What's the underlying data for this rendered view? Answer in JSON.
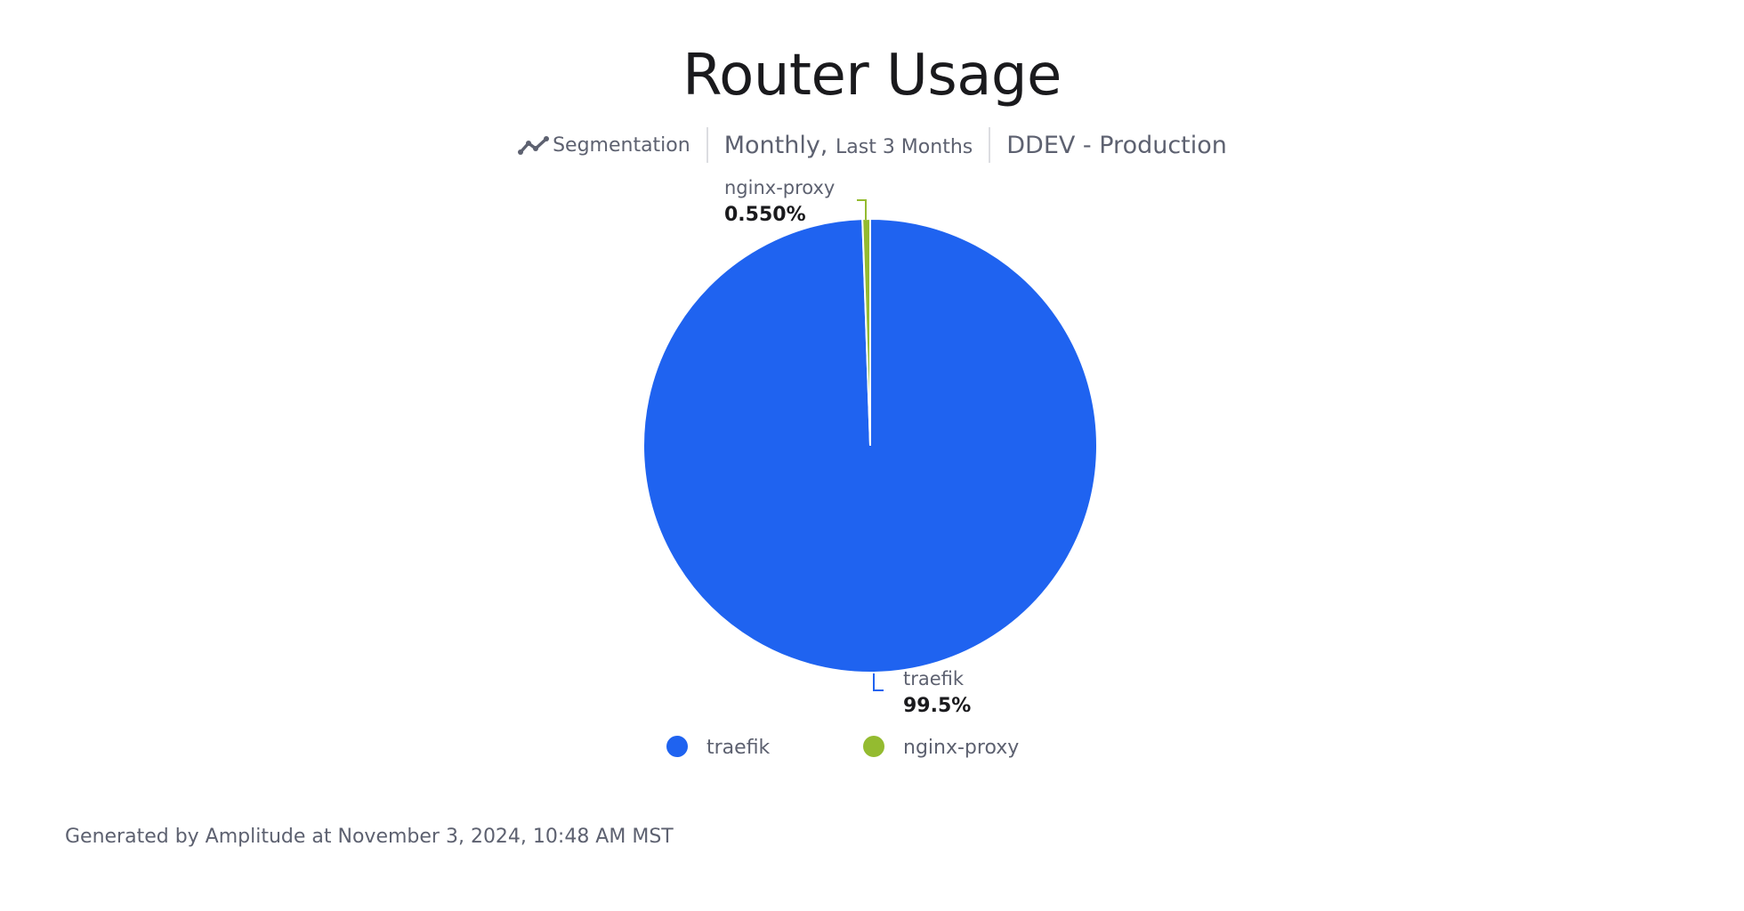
{
  "header": {
    "title": "Router Usage",
    "chart_kind_label": "Segmentation",
    "chart_kind_icon": "line-chart-icon",
    "interval": "Monthly,",
    "range": "Last 3 Months",
    "project": "DDEV - Production"
  },
  "chart_data": {
    "type": "pie",
    "categories": [
      "traefik",
      "nginx-proxy"
    ],
    "values": [
      99.45,
      0.55
    ],
    "data_labels": [
      "99.5%",
      "0.550%"
    ],
    "colors": [
      "#1f63f0",
      "#94bb30"
    ],
    "legend": [
      "traefik",
      "nginx-proxy"
    ],
    "legend_placement": "bottom"
  },
  "footer": "Generated by Amplitude at November 3, 2024, 10:48 AM MST"
}
